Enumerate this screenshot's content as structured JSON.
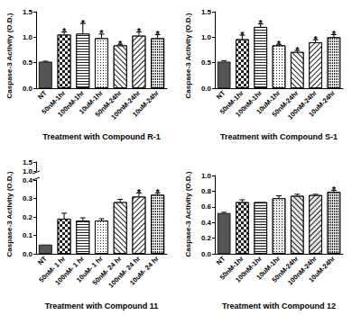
{
  "chart_data": [
    {
      "type": "bar",
      "xlabel": "Treatment with Compound R-1",
      "ylabel": "Caspase-3 Activity (O.D.)",
      "categories": [
        "NT",
        "50nM-1hr",
        "100nM-1hr",
        "10uM-1hr",
        "50nM-24hr",
        "100nM-24hr",
        "10uM-24hr"
      ],
      "values": [
        0.52,
        1.05,
        1.07,
        0.98,
        0.84,
        1.03,
        0.98
      ],
      "errors": [
        0.01,
        0.05,
        0.2,
        0.08,
        0.02,
        0.07,
        0.07
      ],
      "significance": [
        null,
        "*",
        "*",
        "*",
        "*",
        "*",
        "*"
      ],
      "colors": [
        "#555555",
        "#ffffff",
        "#ffffff",
        "#ffffff",
        "#ffffff",
        "#ffffff",
        "#ffffff"
      ],
      "ylim": [
        0,
        1.5
      ],
      "yticks": [
        {
          "value": 0,
          "label": "0.0"
        },
        0.5,
        {
          "value": 1,
          "label": "1.0"
        },
        1.5
      ],
      "grid": false
    },
    {
      "type": "bar",
      "xlabel": "Treatment with Compound S-1",
      "ylabel": "Caspase-3 Activity (O.D.)",
      "categories": [
        "NT",
        "50nM-1hr",
        "100nM-1hr",
        "10uM-1hr",
        "50nM-24hr",
        "100nM-24hr",
        "10uM-24hr"
      ],
      "values": [
        0.52,
        0.96,
        1.2,
        0.84,
        0.71,
        0.9,
        1.0
      ],
      "errors": [
        0.02,
        0.08,
        0.06,
        0.02,
        0.03,
        0.05,
        0.05
      ],
      "significance": [
        null,
        "*",
        "*",
        "*",
        "*",
        "*",
        "*"
      ],
      "colors": [
        "#555555",
        "#ffffff",
        "#ffffff",
        "#ffffff",
        "#ffffff",
        "#ffffff",
        "#ffffff"
      ],
      "ylim": [
        0,
        1.5
      ],
      "yticks": [
        {
          "value": 0,
          "label": "0.0"
        },
        0.5,
        {
          "value": 1,
          "label": "1.0"
        },
        1.5
      ],
      "grid": false
    },
    {
      "type": "bar",
      "xlabel": "Treatment with Compound 11",
      "ylabel": "Caspase-3 Activity (O.D.)",
      "categories": [
        "NT",
        "50nM- 1 hr",
        "100nM- 1 hr",
        "10uM- 1 hr",
        "50nM- 24 hr",
        "100nM- 24 hr",
        "10uM- 24 hr"
      ],
      "values": [
        0.05,
        0.19,
        0.18,
        0.18,
        0.28,
        0.31,
        0.32
      ],
      "errors": [
        0,
        0.03,
        0.015,
        0.01,
        0.015,
        0.02,
        0.01
      ],
      "significance": [
        null,
        null,
        null,
        null,
        null,
        "*",
        "*"
      ],
      "colors": [
        "#555555",
        "#ffffff",
        "#ffffff",
        "#ffffff",
        "#ffffff",
        "#ffffff",
        "#ffffff"
      ],
      "ylim": [
        0,
        0.4
      ],
      "yticks": [
        {
          "value": 0,
          "label": "0.0"
        },
        0.1,
        0.2,
        0.3,
        0.4
      ],
      "y2lim": [
        1,
        1.5
      ],
      "y2ticks": [
        {
          "value": 1,
          "label": "1.0"
        },
        1.5
      ],
      "grid": false
    },
    {
      "type": "bar",
      "xlabel": "Treatment with Compound 12",
      "ylabel": "Caspase-3 Activity (O.D.)",
      "categories": [
        "NT",
        "50nM-1hr",
        "100nM-1hr",
        "10uM-1hr",
        "50nM-24hr",
        "100nM-24hr",
        "10uM-24hr"
      ],
      "values": [
        0.52,
        0.66,
        0.66,
        0.71,
        0.74,
        0.75,
        0.79
      ],
      "errors": [
        0.01,
        0.03,
        0,
        0.03,
        0.02,
        0.01,
        0.02
      ],
      "significance": [
        null,
        null,
        null,
        null,
        null,
        null,
        "*"
      ],
      "colors": [
        "#555555",
        "#e6e6e6",
        "#e6e6e6",
        "#e6e6e6",
        "#e6e6e6",
        "#e6e6e6",
        "#e6e6e6"
      ],
      "ylim": [
        0,
        1
      ],
      "yticks": [
        {
          "value": 0,
          "label": "0.0"
        },
        0.2,
        0.4,
        0.6,
        0.8,
        {
          "value": 1,
          "label": "1.0"
        }
      ],
      "grid": false
    }
  ]
}
